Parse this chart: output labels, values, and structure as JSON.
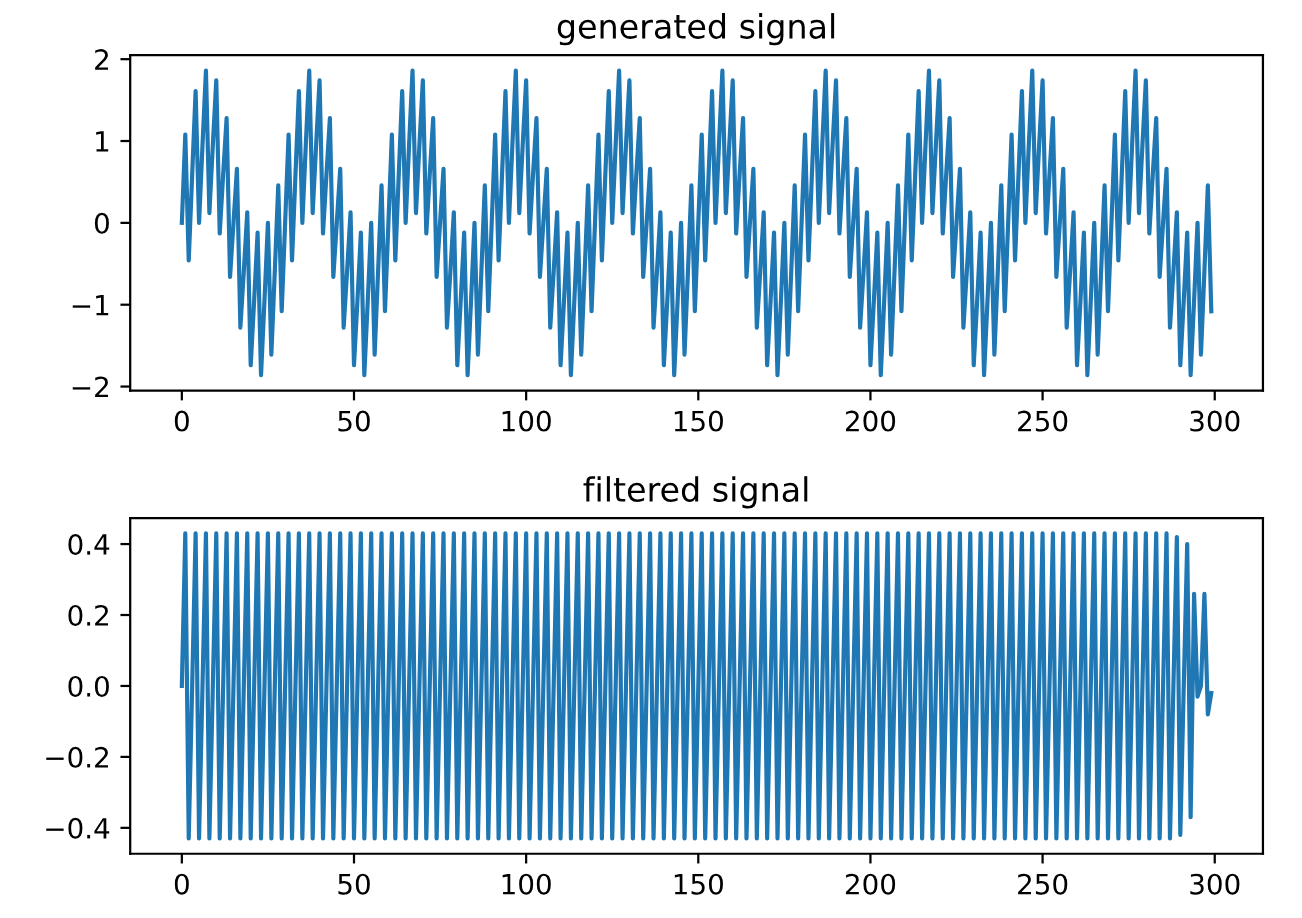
{
  "chart_data": [
    {
      "type": "line",
      "title": "generated signal",
      "x": [
        0,
        1,
        2,
        3,
        4,
        5,
        6,
        7,
        8,
        9,
        10,
        11,
        12,
        13,
        14,
        15,
        16,
        17,
        18,
        19,
        20,
        21,
        22,
        23,
        24,
        25,
        26,
        27,
        28,
        29,
        30,
        31,
        32,
        33,
        34,
        35,
        36,
        37,
        38,
        39,
        40,
        41,
        42,
        43,
        44,
        45,
        46,
        47,
        48,
        49,
        50,
        51,
        52,
        53,
        54,
        55,
        56,
        57,
        58,
        59,
        60,
        61,
        62,
        63,
        64,
        65,
        66,
        67,
        68,
        69,
        70,
        71,
        72,
        73,
        74,
        75,
        76,
        77,
        78,
        79,
        80,
        81,
        82,
        83,
        84,
        85,
        86,
        87,
        88,
        89,
        90,
        91,
        92,
        93,
        94,
        95,
        96,
        97,
        98,
        99,
        100,
        101,
        102,
        103,
        104,
        105,
        106,
        107,
        108,
        109,
        110,
        111,
        112,
        113,
        114,
        115,
        116,
        117,
        118,
        119,
        120,
        121,
        122,
        123,
        124,
        125,
        126,
        127,
        128,
        129,
        130,
        131,
        132,
        133,
        134,
        135,
        136,
        137,
        138,
        139,
        140,
        141,
        142,
        143,
        144,
        145,
        146,
        147,
        148,
        149,
        150,
        151,
        152,
        153,
        154,
        155,
        156,
        157,
        158,
        159,
        160,
        161,
        162,
        163,
        164,
        165,
        166,
        167,
        168,
        169,
        170,
        171,
        172,
        173,
        174,
        175,
        176,
        177,
        178,
        179,
        180,
        181,
        182,
        183,
        184,
        185,
        186,
        187,
        188,
        189,
        190,
        191,
        192,
        193,
        194,
        195,
        196,
        197,
        198,
        199,
        200,
        201,
        202,
        203,
        204,
        205,
        206,
        207,
        208,
        209,
        210,
        211,
        212,
        213,
        214,
        215,
        216,
        217,
        218,
        219,
        220,
        221,
        222,
        223,
        224,
        225,
        226,
        227,
        228,
        229,
        230,
        231,
        232,
        233,
        234,
        235,
        236,
        237,
        238,
        239,
        240,
        241,
        242,
        243,
        244,
        245,
        246,
        247,
        248,
        249,
        250,
        251,
        252,
        253,
        254,
        255,
        256,
        257,
        258,
        259,
        260,
        261,
        262,
        263,
        264,
        265,
        266,
        267,
        268,
        269,
        270,
        271,
        272,
        273,
        274,
        275,
        276,
        277,
        278,
        279,
        280,
        281,
        282,
        283,
        284,
        285,
        286,
        287,
        288,
        289,
        290,
        291,
        292,
        293,
        294,
        295,
        296,
        297,
        298,
        299
      ],
      "series": [
        {
          "color": "#1f77b4",
          "values": [
            0,
            1.08,
            -0.46,
            0.59,
            1.61,
            0,
            0.95,
            1.86,
            0.12,
            0.95,
            1.74,
            -0.13,
            0.59,
            1.28,
            -0.66,
            0,
            0.66,
            -1.28,
            -0.59,
            0.13,
            -1.74,
            -0.95,
            -0.12,
            -1.86,
            -0.95,
            0,
            -1.61,
            -0.59,
            0.46,
            -1.08,
            0,
            1.08,
            -0.46,
            0.59,
            1.61,
            0,
            0.95,
            1.86,
            0.12,
            0.95,
            1.74,
            -0.13,
            0.59,
            1.28,
            -0.66,
            0,
            0.66,
            -1.28,
            -0.59,
            0.13,
            -1.74,
            -0.95,
            -0.12,
            -1.86,
            -0.95,
            0,
            -1.61,
            -0.59,
            0.46,
            -1.08,
            0,
            1.08,
            -0.46,
            0.59,
            1.61,
            0,
            0.95,
            1.86,
            0.12,
            0.95,
            1.74,
            -0.13,
            0.59,
            1.28,
            -0.66,
            0,
            0.66,
            -1.28,
            -0.59,
            0.13,
            -1.74,
            -0.95,
            -0.12,
            -1.86,
            -0.95,
            0,
            -1.61,
            -0.59,
            0.46,
            -1.08,
            0,
            1.08,
            -0.46,
            0.59,
            1.61,
            0,
            0.95,
            1.86,
            0.12,
            0.95,
            1.74,
            -0.13,
            0.59,
            1.28,
            -0.66,
            0,
            0.66,
            -1.28,
            -0.59,
            0.13,
            -1.74,
            -0.95,
            -0.12,
            -1.86,
            -0.95,
            0,
            -1.61,
            -0.59,
            0.46,
            -1.08,
            0,
            1.08,
            -0.46,
            0.59,
            1.61,
            0,
            0.95,
            1.86,
            0.12,
            0.95,
            1.74,
            -0.13,
            0.59,
            1.28,
            -0.66,
            0,
            0.66,
            -1.28,
            -0.59,
            0.13,
            -1.74,
            -0.95,
            -0.12,
            -1.86,
            -0.95,
            0,
            -1.61,
            -0.59,
            0.46,
            -1.08,
            0,
            1.08,
            -0.46,
            0.59,
            1.61,
            0,
            0.95,
            1.86,
            0.12,
            0.95,
            1.74,
            -0.13,
            0.59,
            1.28,
            -0.66,
            0,
            0.66,
            -1.28,
            -0.59,
            0.13,
            -1.74,
            -0.95,
            -0.12,
            -1.86,
            -0.95,
            0,
            -1.61,
            -0.59,
            0.46,
            -1.08,
            0,
            1.08,
            -0.46,
            0.59,
            1.61,
            0,
            0.95,
            1.86,
            0.12,
            0.95,
            1.74,
            -0.13,
            0.59,
            1.28,
            -0.66,
            0,
            0.66,
            -1.28,
            -0.59,
            0.13,
            -1.74,
            -0.95,
            -0.12,
            -1.86,
            -0.95,
            0,
            -1.61,
            -0.59,
            0.46,
            -1.08,
            0,
            1.08,
            -0.46,
            0.59,
            1.61,
            0,
            0.95,
            1.86,
            0.12,
            0.95,
            1.74,
            -0.13,
            0.59,
            1.28,
            -0.66,
            0,
            0.66,
            -1.28,
            -0.59,
            0.13,
            -1.74,
            -0.95,
            -0.12,
            -1.86,
            -0.95,
            0,
            -1.61,
            -0.59,
            0.46,
            -1.08,
            0,
            1.08,
            -0.46,
            0.59,
            1.61,
            0,
            0.95,
            1.86,
            0.12,
            0.95,
            1.74,
            -0.13,
            0.59,
            1.28,
            -0.66,
            0,
            0.66,
            -1.28,
            -0.59,
            0.13,
            -1.74,
            -0.95,
            -0.12,
            -1.86,
            -0.95,
            0,
            -1.61,
            -0.59,
            0.46,
            -1.08,
            0,
            1.08,
            -0.46,
            0.59,
            1.61,
            0,
            0.95,
            1.86,
            0.12,
            0.95,
            1.74,
            -0.13,
            0.59,
            1.28,
            -0.66,
            0,
            0.66,
            -1.28,
            -0.59,
            0.13,
            -1.74,
            -0.95,
            -0.12,
            -1.86,
            -0.95,
            0,
            -1.61,
            -0.59,
            0.46,
            -1.08
          ]
        }
      ],
      "xlim": [
        -15,
        314
      ],
      "xticks": [
        0,
        50,
        100,
        150,
        200,
        250,
        300
      ],
      "ylim": [
        -2.05,
        2.05
      ],
      "yticks": [
        {
          "value": -2,
          "label": "−2"
        },
        {
          "value": -1,
          "label": "−1"
        },
        0,
        1,
        2
      ]
    },
    {
      "type": "line",
      "title": "filtered signal",
      "x": [
        0,
        1,
        2,
        3,
        4,
        5,
        6,
        7,
        8,
        9,
        10,
        11,
        12,
        13,
        14,
        15,
        16,
        17,
        18,
        19,
        20,
        21,
        22,
        23,
        24,
        25,
        26,
        27,
        28,
        29,
        30,
        31,
        32,
        33,
        34,
        35,
        36,
        37,
        38,
        39,
        40,
        41,
        42,
        43,
        44,
        45,
        46,
        47,
        48,
        49,
        50,
        51,
        52,
        53,
        54,
        55,
        56,
        57,
        58,
        59,
        60,
        61,
        62,
        63,
        64,
        65,
        66,
        67,
        68,
        69,
        70,
        71,
        72,
        73,
        74,
        75,
        76,
        77,
        78,
        79,
        80,
        81,
        82,
        83,
        84,
        85,
        86,
        87,
        88,
        89,
        90,
        91,
        92,
        93,
        94,
        95,
        96,
        97,
        98,
        99,
        100,
        101,
        102,
        103,
        104,
        105,
        106,
        107,
        108,
        109,
        110,
        111,
        112,
        113,
        114,
        115,
        116,
        117,
        118,
        119,
        120,
        121,
        122,
        123,
        124,
        125,
        126,
        127,
        128,
        129,
        130,
        131,
        132,
        133,
        134,
        135,
        136,
        137,
        138,
        139,
        140,
        141,
        142,
        143,
        144,
        145,
        146,
        147,
        148,
        149,
        150,
        151,
        152,
        153,
        154,
        155,
        156,
        157,
        158,
        159,
        160,
        161,
        162,
        163,
        164,
        165,
        166,
        167,
        168,
        169,
        170,
        171,
        172,
        173,
        174,
        175,
        176,
        177,
        178,
        179,
        180,
        181,
        182,
        183,
        184,
        185,
        186,
        187,
        188,
        189,
        190,
        191,
        192,
        193,
        194,
        195,
        196,
        197,
        198,
        199,
        200,
        201,
        202,
        203,
        204,
        205,
        206,
        207,
        208,
        209,
        210,
        211,
        212,
        213,
        214,
        215,
        216,
        217,
        218,
        219,
        220,
        221,
        222,
        223,
        224,
        225,
        226,
        227,
        228,
        229,
        230,
        231,
        232,
        233,
        234,
        235,
        236,
        237,
        238,
        239,
        240,
        241,
        242,
        243,
        244,
        245,
        246,
        247,
        248,
        249,
        250,
        251,
        252,
        253,
        254,
        255,
        256,
        257,
        258,
        259,
        260,
        261,
        262,
        263,
        264,
        265,
        266,
        267,
        268,
        269,
        270,
        271,
        272,
        273,
        274,
        275,
        276,
        277,
        278,
        279,
        280,
        281,
        282,
        283,
        284,
        285,
        286,
        287,
        288,
        289,
        290,
        291,
        292,
        293,
        294,
        295,
        296,
        297,
        298,
        299
      ],
      "series": [
        {
          "color": "#1f77b4",
          "values": [
            0,
            0.43,
            -0.43,
            0,
            0.43,
            -0.43,
            0,
            0.43,
            -0.43,
            0,
            0.43,
            -0.43,
            0,
            0.43,
            -0.43,
            0,
            0.43,
            -0.43,
            0,
            0.43,
            -0.43,
            0,
            0.43,
            -0.43,
            0,
            0.43,
            -0.43,
            0,
            0.43,
            -0.43,
            0,
            0.43,
            -0.43,
            0,
            0.43,
            -0.43,
            0,
            0.43,
            -0.43,
            0,
            0.43,
            -0.43,
            0,
            0.43,
            -0.43,
            0,
            0.43,
            -0.43,
            0,
            0.43,
            -0.43,
            0,
            0.43,
            -0.43,
            0,
            0.43,
            -0.43,
            0,
            0.43,
            -0.43,
            0,
            0.43,
            -0.43,
            0,
            0.43,
            -0.43,
            0,
            0.43,
            -0.43,
            0,
            0.43,
            -0.43,
            0,
            0.43,
            -0.43,
            0,
            0.43,
            -0.43,
            0,
            0.43,
            -0.43,
            0,
            0.43,
            -0.43,
            0,
            0.43,
            -0.43,
            0,
            0.43,
            -0.43,
            0,
            0.43,
            -0.43,
            0,
            0.43,
            -0.43,
            0,
            0.43,
            -0.43,
            0,
            0.43,
            -0.43,
            0,
            0.43,
            -0.43,
            0,
            0.43,
            -0.43,
            0,
            0.43,
            -0.43,
            0,
            0.43,
            -0.43,
            0,
            0.43,
            -0.43,
            0,
            0.43,
            -0.43,
            0,
            0.43,
            -0.43,
            0,
            0.43,
            -0.43,
            0,
            0.43,
            -0.43,
            0,
            0.43,
            -0.43,
            0,
            0.43,
            -0.43,
            0,
            0.43,
            -0.43,
            0,
            0.43,
            -0.43,
            0,
            0.43,
            -0.43,
            0,
            0.43,
            -0.43,
            0,
            0.43,
            -0.43,
            0,
            0.43,
            -0.43,
            0,
            0.43,
            -0.43,
            0,
            0.43,
            -0.43,
            0,
            0.43,
            -0.43,
            0,
            0.43,
            -0.43,
            0,
            0.43,
            -0.43,
            0,
            0.43,
            -0.43,
            0,
            0.43,
            -0.43,
            0,
            0.43,
            -0.43,
            0,
            0.43,
            -0.43,
            0,
            0.43,
            -0.43,
            0,
            0.43,
            -0.43,
            0,
            0.43,
            -0.43,
            0,
            0.43,
            -0.43,
            0,
            0.43,
            -0.43,
            0,
            0.43,
            -0.43,
            0,
            0.43,
            -0.43,
            0,
            0.43,
            -0.43,
            0,
            0.43,
            -0.43,
            0,
            0.43,
            -0.43,
            0,
            0.43,
            -0.43,
            0,
            0.43,
            -0.43,
            0,
            0.43,
            -0.43,
            0,
            0.43,
            -0.43,
            0,
            0.43,
            -0.43,
            0,
            0.43,
            -0.43,
            0,
            0.43,
            -0.43,
            0,
            0.43,
            -0.43,
            0,
            0.43,
            -0.43,
            0,
            0.43,
            -0.43,
            0,
            0.43,
            -0.43,
            0,
            0.43,
            -0.43,
            0,
            0.43,
            -0.43,
            0,
            0.43,
            -0.43,
            0,
            0.43,
            -0.43,
            0,
            0.43,
            -0.43,
            0,
            0.43,
            -0.43,
            0,
            0.43,
            -0.43,
            0,
            0.43,
            -0.43,
            0,
            0.43,
            -0.43,
            0,
            0.43,
            -0.43,
            0,
            0.43,
            -0.43,
            0,
            0.43,
            -0.43,
            0,
            0.43,
            -0.43,
            0,
            0.43,
            -0.43,
            0,
            0.43,
            -0.43,
            0,
            0.42,
            -0.42,
            0,
            0.4,
            -0.37,
            0.26,
            -0.03,
            0,
            0.26,
            -0.08,
            -0.02
          ]
        }
      ],
      "xlim": [
        -15,
        314
      ],
      "xticks": [
        0,
        50,
        100,
        150,
        200,
        250,
        300
      ],
      "ylim": [
        -0.473,
        0.473
      ],
      "yticks": [
        {
          "value": -0.4,
          "label": "−0.4"
        },
        {
          "value": -0.2,
          "label": "−0.2"
        },
        {
          "value": 0,
          "label": "0.0"
        },
        {
          "value": 0.2,
          "label": "0.2"
        },
        {
          "value": 0.4,
          "label": "0.4"
        }
      ]
    }
  ]
}
